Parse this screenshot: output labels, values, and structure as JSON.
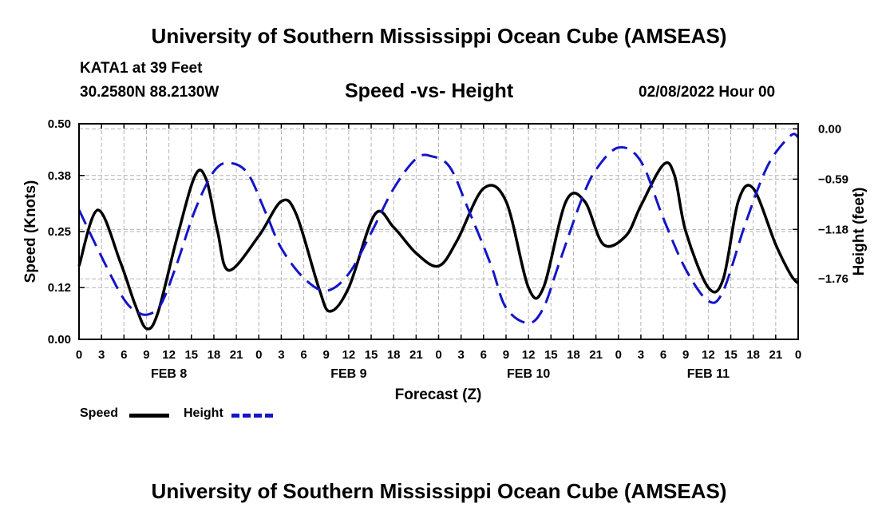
{
  "page": {
    "main_title": "University of Southern Mississippi Ocean Cube (AMSEAS)",
    "footer_title": "University of Southern Mississippi Ocean Cube (AMSEAS)",
    "station": "KATA1 at 39 Feet",
    "location": "30.2580N  88.2130W",
    "subtitle": "Speed -vs- Height",
    "datetime": "02/08/2022 Hour 00"
  },
  "colors": {
    "speed": "#000000",
    "height": "#1414c8",
    "grid": "#b4b4b4"
  },
  "chart_data": {
    "type": "line",
    "title": "Speed -vs- Height",
    "xlabel": "Forecast (Z)",
    "ylabel": "Speed (Knots)",
    "y2label": "Height (feet)",
    "x_unit": "hours since 02/08/2022 00Z",
    "xlim": [
      0,
      96
    ],
    "ylim": [
      0,
      0.5
    ],
    "y2lim": [
      -2.47,
      0.06
    ],
    "yticks": [
      0,
      0.12,
      0.25,
      0.38,
      0.5
    ],
    "ytick_labels": [
      "0.00",
      "0.12",
      "0.25",
      "0.38",
      "0.50"
    ],
    "y2ticks": [
      0,
      -0.59,
      -1.18,
      -1.76
    ],
    "y2tick_labels": [
      "0.00",
      "−0.59",
      "−1.18",
      "−1.76"
    ],
    "xticks": [
      0,
      3,
      6,
      9,
      12,
      15,
      18,
      21,
      24,
      27,
      30,
      33,
      36,
      39,
      42,
      45,
      48,
      51,
      54,
      57,
      60,
      63,
      66,
      69,
      72,
      75,
      78,
      81,
      84,
      87,
      90,
      93,
      96
    ],
    "xtick_labels": [
      "0",
      "3",
      "6",
      "9",
      "12",
      "15",
      "18",
      "21",
      "0",
      "3",
      "6",
      "9",
      "12",
      "15",
      "18",
      "21",
      "0",
      "3",
      "6",
      "9",
      "12",
      "15",
      "18",
      "21",
      "0",
      "3",
      "6",
      "9",
      "12",
      "15",
      "18",
      "21",
      "0"
    ],
    "day_labels": [
      {
        "x": 12,
        "label": "FEB 8"
      },
      {
        "x": 36,
        "label": "FEB 9"
      },
      {
        "x": 60,
        "label": "FEB 10"
      },
      {
        "x": 84,
        "label": "FEB 11"
      }
    ],
    "grid": true,
    "legend": [
      {
        "label": "Speed",
        "style": "solid"
      },
      {
        "label": "Height",
        "style": "dashed"
      }
    ],
    "series": [
      {
        "name": "Speed",
        "axis": "left",
        "style": "solid",
        "x": [
          0,
          2.5,
          5.5,
          7.5,
          9,
          10.5,
          13,
          15.5,
          17,
          18.5,
          20,
          24,
          27,
          29,
          32,
          33.5,
          36,
          39.5,
          42,
          45,
          48,
          50.5,
          54,
          57,
          60,
          62,
          65,
          67.5,
          70,
          73,
          75,
          78,
          79.5,
          81,
          84,
          86,
          88,
          90,
          93,
          95,
          96
        ],
        "y": [
          0.17,
          0.3,
          0.18,
          0.08,
          0.025,
          0.06,
          0.23,
          0.38,
          0.37,
          0.25,
          0.16,
          0.24,
          0.32,
          0.29,
          0.12,
          0.065,
          0.12,
          0.29,
          0.26,
          0.2,
          0.17,
          0.23,
          0.35,
          0.32,
          0.12,
          0.12,
          0.32,
          0.32,
          0.22,
          0.24,
          0.31,
          0.405,
          0.38,
          0.25,
          0.12,
          0.14,
          0.32,
          0.35,
          0.22,
          0.15,
          0.13
        ]
      },
      {
        "name": "Height",
        "axis": "right",
        "style": "dashed",
        "x": [
          0,
          3,
          6,
          8,
          9.5,
          11,
          13,
          15.5,
          18,
          20,
          22.5,
          25,
          27,
          30,
          33,
          36,
          39,
          42,
          45,
          47,
          49.5,
          52,
          55,
          57,
          60,
          62,
          64,
          67,
          69,
          72,
          75,
          78,
          81,
          84,
          86,
          89,
          92,
          95,
          96
        ],
        "y": [
          -0.95,
          -1.5,
          -2.0,
          -2.16,
          -2.17,
          -2.05,
          -1.6,
          -0.95,
          -0.5,
          -0.4,
          -0.52,
          -1.0,
          -1.4,
          -1.75,
          -1.9,
          -1.7,
          -1.22,
          -0.7,
          -0.35,
          -0.32,
          -0.45,
          -0.95,
          -1.6,
          -2.1,
          -2.28,
          -2.1,
          -1.6,
          -0.85,
          -0.48,
          -0.22,
          -0.38,
          -1.05,
          -1.65,
          -2.02,
          -1.9,
          -1.1,
          -0.42,
          -0.08,
          -0.1
        ]
      }
    ]
  }
}
